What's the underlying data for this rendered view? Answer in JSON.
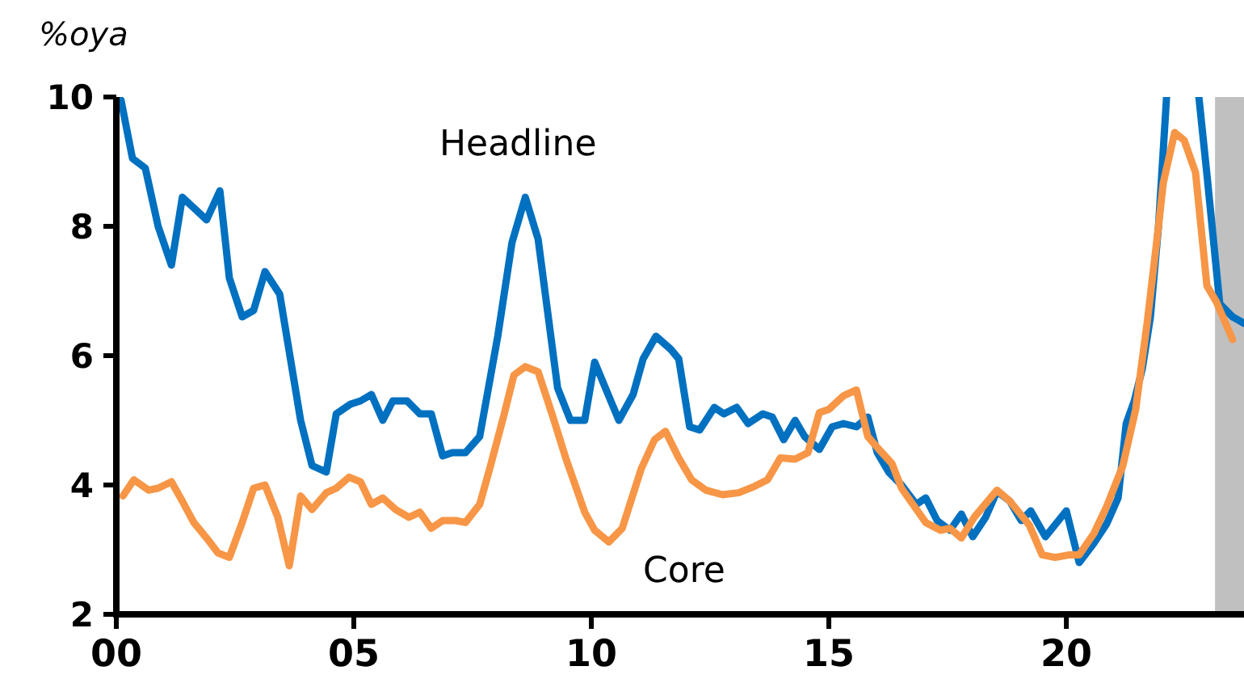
{
  "chart_data": {
    "type": "line",
    "ylabel": "%oya",
    "xlim": [
      2000,
      2023.74
    ],
    "xticks": [
      {
        "value": 2000,
        "label": "00"
      },
      {
        "value": 2005,
        "label": "05"
      },
      {
        "value": 2010,
        "label": "10"
      },
      {
        "value": 2015,
        "label": "15"
      },
      {
        "value": 2020,
        "label": "20"
      }
    ],
    "ylim": [
      2,
      10
    ],
    "yticks": [
      2,
      4,
      6,
      8,
      10
    ],
    "grid": false,
    "line_style": "solid",
    "marker": "none",
    "bands": [
      {
        "axis": "x",
        "from": 2023.13,
        "to": 2023.74,
        "color": "#c0c0c0"
      }
    ],
    "series": [
      {
        "name": "Headline",
        "color": "#0070c0",
        "x": [
          2000.1,
          2000.34,
          2000.61,
          2000.88,
          2001.16,
          2001.39,
          2001.9,
          2002.18,
          2002.38,
          2002.65,
          2002.89,
          2003.13,
          2003.44,
          2003.88,
          2004.12,
          2004.42,
          2004.63,
          2004.93,
          2005.14,
          2005.37,
          2005.61,
          2005.82,
          2006.12,
          2006.39,
          2006.63,
          2006.87,
          2007.07,
          2007.35,
          2007.65,
          2008.03,
          2008.33,
          2008.61,
          2008.88,
          2009.29,
          2009.56,
          2009.86,
          2010.07,
          2010.58,
          2010.88,
          2011.09,
          2011.36,
          2011.67,
          2011.84,
          2012.07,
          2012.28,
          2012.59,
          2012.79,
          2013.06,
          2013.3,
          2013.61,
          2013.81,
          2014.05,
          2014.29,
          2014.49,
          2014.8,
          2015.07,
          2015.31,
          2015.58,
          2015.82,
          2016.02,
          2016.26,
          2016.53,
          2016.84,
          2017.04,
          2017.28,
          2017.55,
          2017.79,
          2018.03,
          2018.3,
          2018.54,
          2018.81,
          2019.05,
          2019.25,
          2019.56,
          2020.0,
          2020.27,
          2020.58,
          2020.85,
          2021.09,
          2021.26,
          2021.43,
          2021.6,
          2021.77,
          2021.94,
          2022.11,
          2022.45,
          2022.79,
          2022.96,
          2023.23,
          2023.5,
          2023.74
        ],
        "values": [
          9.95,
          9.05,
          8.9,
          8.0,
          7.4,
          8.45,
          8.1,
          8.55,
          7.2,
          6.6,
          6.7,
          7.3,
          6.95,
          5.0,
          4.3,
          4.2,
          5.1,
          5.25,
          5.3,
          5.4,
          5.0,
          5.3,
          5.3,
          5.1,
          5.1,
          4.45,
          4.5,
          4.5,
          4.75,
          6.3,
          7.75,
          8.45,
          7.8,
          5.5,
          5.0,
          5.0,
          5.9,
          5.0,
          5.4,
          5.95,
          6.3,
          6.1,
          5.95,
          4.9,
          4.85,
          5.2,
          5.1,
          5.2,
          4.95,
          5.1,
          5.05,
          4.7,
          5.0,
          4.75,
          4.55,
          4.9,
          4.95,
          4.9,
          5.05,
          4.5,
          4.2,
          4.0,
          3.7,
          3.8,
          3.45,
          3.3,
          3.55,
          3.2,
          3.5,
          3.9,
          3.75,
          3.45,
          3.6,
          3.2,
          3.6,
          2.8,
          3.1,
          3.4,
          3.8,
          4.95,
          5.3,
          5.8,
          6.6,
          8.0,
          10,
          null,
          10,
          8.8,
          6.8,
          6.6,
          6.5
        ]
      },
      {
        "name": "Core",
        "color": "#f79646",
        "x": [
          2000.14,
          2000.37,
          2000.68,
          2000.88,
          2001.16,
          2001.39,
          2001.63,
          2001.9,
          2002.14,
          2002.38,
          2002.65,
          2002.89,
          2003.13,
          2003.4,
          2003.64,
          2003.88,
          2004.12,
          2004.42,
          2004.63,
          2004.9,
          2005.14,
          2005.37,
          2005.61,
          2005.88,
          2006.16,
          2006.39,
          2006.63,
          2006.87,
          2007.14,
          2007.35,
          2007.65,
          2007.86,
          2008.16,
          2008.37,
          2008.61,
          2008.88,
          2009.18,
          2009.46,
          2009.86,
          2010.07,
          2010.37,
          2010.65,
          2011.05,
          2011.33,
          2011.56,
          2011.84,
          2012.11,
          2012.41,
          2012.76,
          2013.1,
          2013.44,
          2013.71,
          2013.98,
          2014.29,
          2014.56,
          2014.8,
          2015.0,
          2015.31,
          2015.58,
          2015.82,
          2016.02,
          2016.33,
          2016.53,
          2016.77,
          2017.04,
          2017.35,
          2017.55,
          2017.79,
          2018.06,
          2018.54,
          2018.81,
          2019.22,
          2019.49,
          2019.76,
          2020.07,
          2020.27,
          2020.58,
          2020.85,
          2021.19,
          2021.46,
          2021.7,
          2021.94,
          2022.04,
          2022.28,
          2022.48,
          2022.72,
          2022.96,
          2023.16,
          2023.5
        ],
        "values": [
          3.83,
          4.08,
          3.92,
          3.95,
          4.05,
          3.75,
          3.42,
          3.18,
          2.95,
          2.88,
          3.42,
          3.95,
          4.0,
          3.5,
          2.75,
          3.83,
          3.62,
          3.88,
          3.95,
          4.12,
          4.05,
          3.7,
          3.8,
          3.62,
          3.5,
          3.58,
          3.33,
          3.45,
          3.45,
          3.42,
          3.7,
          4.25,
          5.08,
          5.7,
          5.83,
          5.75,
          5.08,
          4.42,
          3.58,
          3.3,
          3.12,
          3.33,
          4.25,
          4.7,
          4.83,
          4.42,
          4.08,
          3.92,
          3.85,
          3.88,
          3.98,
          4.08,
          4.42,
          4.4,
          4.5,
          5.12,
          5.17,
          5.38,
          5.47,
          4.75,
          4.58,
          4.33,
          3.95,
          3.7,
          3.42,
          3.3,
          3.33,
          3.18,
          3.5,
          3.92,
          3.75,
          3.38,
          2.92,
          2.88,
          2.92,
          2.92,
          3.25,
          3.67,
          4.3,
          5.17,
          6.5,
          8.0,
          8.67,
          9.45,
          9.33,
          8.83,
          7.08,
          6.83,
          6.25
        ]
      }
    ]
  }
}
